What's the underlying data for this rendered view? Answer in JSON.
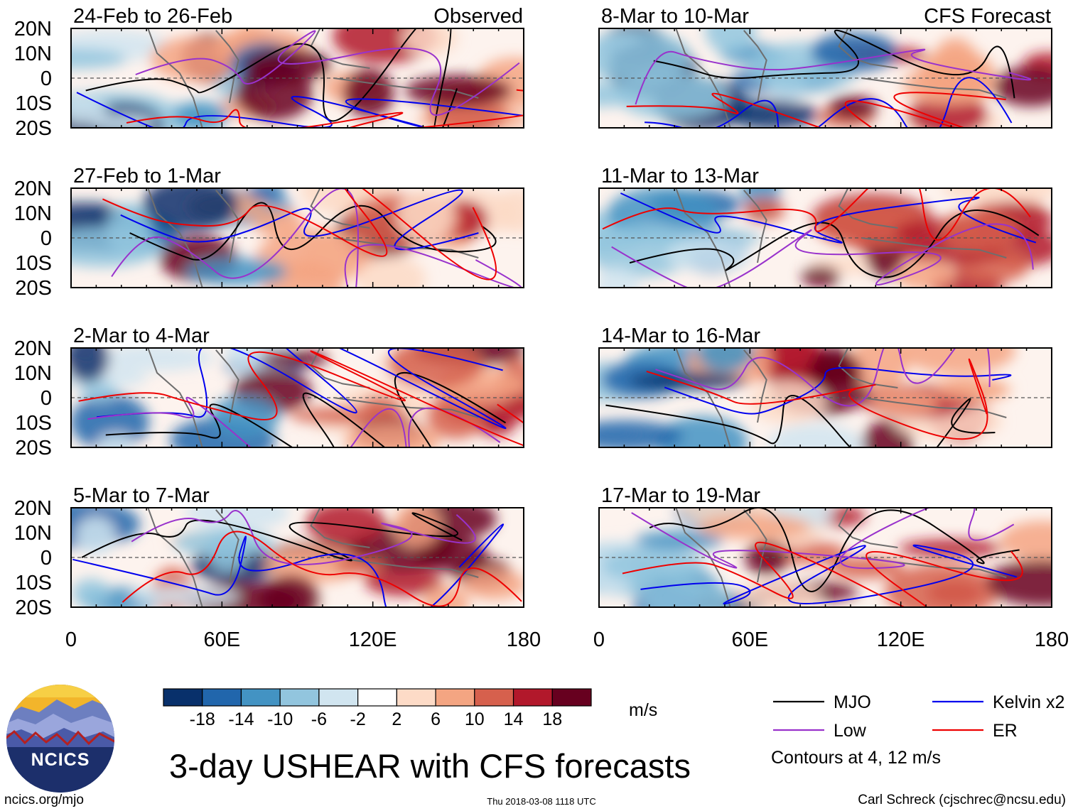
{
  "chart_data": {
    "type": "heatmap",
    "title": "3-day USHEAR with CFS forecasts",
    "units": "m/s",
    "lat_ticks": [
      "20N",
      "10N",
      "0",
      "10S",
      "20S"
    ],
    "lon_ticks": [
      "0",
      "60E",
      "120E",
      "180"
    ],
    "lat_range": [
      -20,
      20
    ],
    "lon_range": [
      0,
      180
    ],
    "colorbar": {
      "labels": [
        "-18",
        "-14",
        "-10",
        "-6",
        "-2",
        "2",
        "6",
        "10",
        "14",
        "18"
      ],
      "colors": [
        "#08306b",
        "#2166ac",
        "#4393c3",
        "#92c5de",
        "#d1e5f0",
        "#ffffff",
        "#fddbc7",
        "#f4a582",
        "#d6604d",
        "#b2182b",
        "#67001f"
      ]
    },
    "observed_label": "Observed",
    "forecast_label": "CFS Forecast",
    "panels": [
      {
        "name": "24-Feb to 26-Feb",
        "col": 0,
        "row": 0,
        "annotation": "Observed"
      },
      {
        "name": "27-Feb to 1-Mar",
        "col": 0,
        "row": 1
      },
      {
        "name": "2-Mar to 4-Mar",
        "col": 0,
        "row": 2
      },
      {
        "name": "5-Mar to 7-Mar",
        "col": 0,
        "row": 3
      },
      {
        "name": "8-Mar to 10-Mar",
        "col": 1,
        "row": 0,
        "annotation": "CFS Forecast"
      },
      {
        "name": "11-Mar to 13-Mar",
        "col": 1,
        "row": 1
      },
      {
        "name": "14-Mar to 16-Mar",
        "col": 1,
        "row": 2
      },
      {
        "name": "17-Mar to 19-Mar",
        "col": 1,
        "row": 3
      }
    ],
    "legend": [
      {
        "label": "MJO",
        "color": "#000000"
      },
      {
        "label": "Kelvin x2",
        "color": "#0000ee"
      },
      {
        "label": "Low",
        "color": "#9932cc"
      },
      {
        "label": "ER",
        "color": "#ee0000"
      }
    ],
    "contour_note": "Contours at 4, 12 m/s"
  },
  "footer": {
    "url": "ncics.org/mjo",
    "timestamp": "Thu 2018-03-08 1118 UTC",
    "author": "Carl Schreck (cjschrec@ncsu.edu)",
    "logo_text": "NCICS"
  }
}
